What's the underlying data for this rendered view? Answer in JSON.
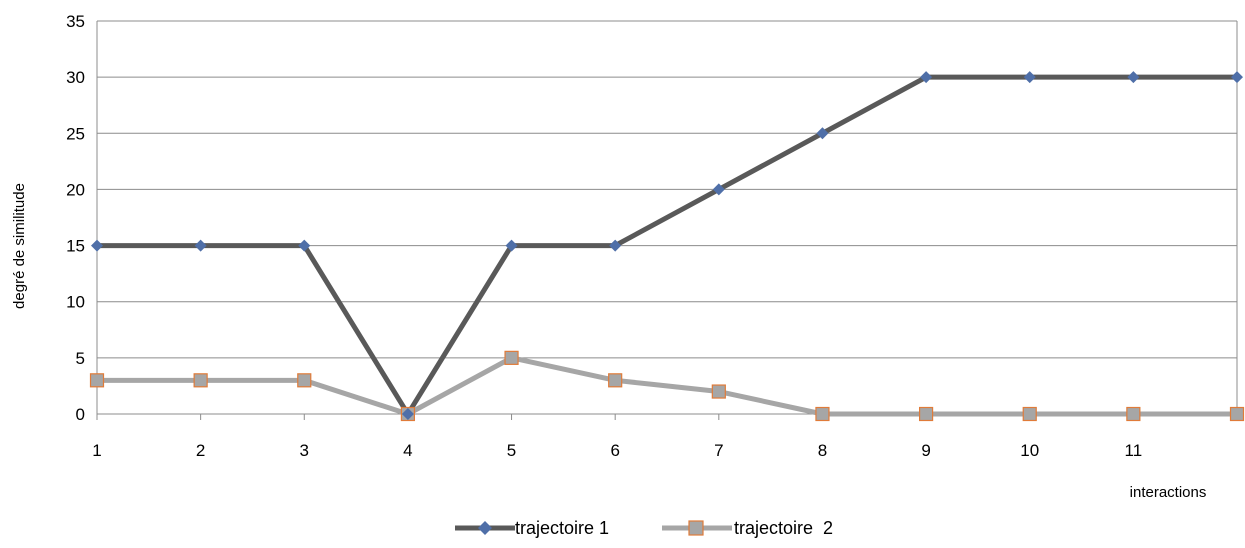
{
  "chart_data": {
    "type": "line",
    "title": "",
    "xlabel": "interactions",
    "ylabel": "degré de similitude",
    "x_ticks": [
      "1",
      "2",
      "3",
      "4",
      "5",
      "6",
      "7",
      "8",
      "9",
      "10",
      "11"
    ],
    "x": [
      1,
      2,
      3,
      4,
      5,
      6,
      7,
      8,
      9,
      10,
      11,
      12
    ],
    "ylim": [
      0,
      35
    ],
    "y_ticks": [
      0,
      5,
      10,
      15,
      20,
      25,
      30,
      35
    ],
    "grid": true,
    "legend_position": "bottom-center",
    "series": [
      {
        "name": "trajectoire 1",
        "values": [
          15,
          15,
          15,
          0,
          15,
          15,
          20,
          25,
          30,
          30,
          30,
          30
        ],
        "color": "#595959",
        "marker": "diamond",
        "marker_color": "#4f6fa8"
      },
      {
        "name": "trajectoire  2",
        "values": [
          3,
          3,
          3,
          0,
          5,
          3,
          2,
          0,
          0,
          0,
          0,
          0
        ],
        "color": "#a6a6a6",
        "marker": "square",
        "marker_color": "#a6a6a6",
        "marker_edge": "#e07b39"
      }
    ]
  }
}
